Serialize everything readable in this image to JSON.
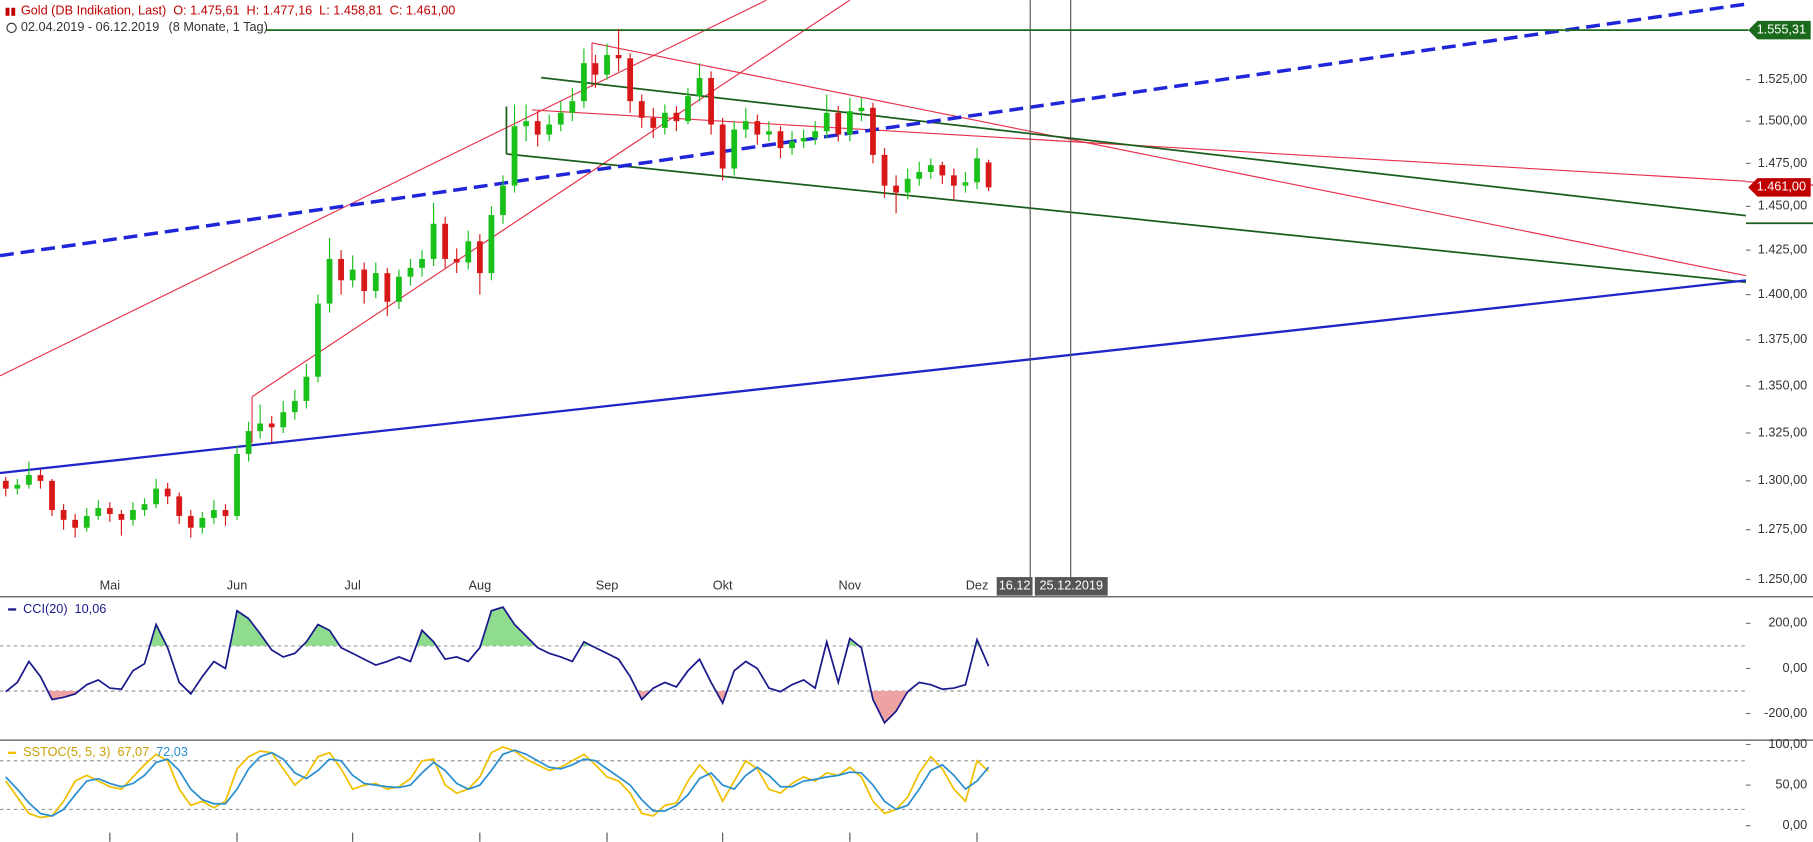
{
  "chart_data": [
    {
      "type": "candlestick",
      "title": "Gold (DB Indikation, Last)",
      "summary": [
        "O: 1.475,61",
        "H: 1.477,16",
        "L: 1.458,81",
        "C: 1.461,00"
      ],
      "subtitle": "02.04.2019 - 06.12.2019",
      "period": "(8 Monate, 1 Tag)",
      "log_scale": true,
      "ylim": [
        1242,
        1574
      ],
      "yticks": [
        {
          "value": 1250,
          "label": "1.250,00"
        },
        {
          "value": 1275,
          "label": "1.275,00"
        },
        {
          "value": 1300,
          "label": "1.300,00"
        },
        {
          "value": 1325,
          "label": "1.325,00"
        },
        {
          "value": 1350,
          "label": "1.350,00"
        },
        {
          "value": 1375,
          "label": "1.375,00"
        },
        {
          "value": 1400,
          "label": "1.400,00"
        },
        {
          "value": 1425,
          "label": "1.425,00"
        },
        {
          "value": 1450,
          "label": "1.450,00"
        },
        {
          "value": 1475,
          "label": "1.475,00"
        },
        {
          "value": 1500,
          "label": "1.500,00"
        },
        {
          "value": 1525,
          "label": "1.525,00"
        }
      ],
      "up_color": "#19c019",
      "down_color": "#d81818",
      "categories": [
        null,
        null,
        null,
        null,
        null,
        null,
        null,
        null,
        null,
        "Mai",
        null,
        null,
        null,
        null,
        null,
        null,
        null,
        null,
        null,
        null,
        "Jun",
        null,
        null,
        null,
        null,
        null,
        null,
        null,
        null,
        null,
        "Jul",
        null,
        null,
        null,
        null,
        null,
        null,
        null,
        null,
        null,
        null,
        "Aug",
        null,
        null,
        null,
        null,
        null,
        null,
        null,
        null,
        null,
        null,
        "Sep",
        null,
        null,
        null,
        null,
        null,
        null,
        null,
        null,
        null,
        "Okt",
        null,
        null,
        null,
        null,
        null,
        null,
        null,
        null,
        null,
        null,
        "Nov",
        null,
        null,
        null,
        null,
        null,
        null,
        null,
        null,
        null,
        null,
        "Dez",
        null
      ],
      "open": [
        1300,
        1296,
        1298,
        1303,
        1300,
        1285,
        1280,
        1276,
        1282,
        1286,
        1283,
        1280,
        1285,
        1288,
        1296,
        1292,
        1282,
        1276,
        1281,
        1285,
        1282,
        1314,
        1326,
        1330,
        1328,
        1336,
        1342,
        1355,
        1395,
        1420,
        1408,
        1414,
        1402,
        1412,
        1396,
        1410,
        1415,
        1420,
        1440,
        1420,
        1418,
        1430,
        1412,
        1445,
        1462,
        1497,
        1500,
        1492,
        1498,
        1505,
        1512,
        1535,
        1528,
        1540,
        1538,
        1512,
        1502,
        1496,
        1505,
        1500,
        1515,
        1526,
        1498,
        1472,
        1495,
        1500,
        1492,
        1494,
        1484,
        1488,
        1490,
        1494,
        1505,
        1492,
        1506,
        1508,
        1480,
        1462,
        1458,
        1466,
        1470,
        1474,
        1468,
        1462,
        1464,
        1475.61
      ],
      "high": [
        1302,
        1301,
        1310,
        1306,
        1301,
        1288,
        1283,
        1286,
        1290,
        1289,
        1285,
        1289,
        1291,
        1301,
        1299,
        1294,
        1285,
        1284,
        1290,
        1288,
        1318,
        1331,
        1340,
        1334,
        1342,
        1348,
        1362,
        1400,
        1432,
        1425,
        1422,
        1418,
        1418,
        1415,
        1414,
        1420,
        1425,
        1452,
        1444,
        1426,
        1436,
        1434,
        1450,
        1468,
        1510,
        1510,
        1506,
        1504,
        1512,
        1520,
        1544,
        1540,
        1547,
        1556,
        1541,
        1516,
        1508,
        1510,
        1509,
        1520,
        1535,
        1530,
        1502,
        1500,
        1508,
        1504,
        1500,
        1497,
        1494,
        1495,
        1500,
        1516,
        1509,
        1514,
        1514,
        1511,
        1484,
        1468,
        1472,
        1476,
        1478,
        1476,
        1472,
        1470,
        1484,
        1477.16
      ],
      "low": [
        1292,
        1293,
        1296,
        1296,
        1282,
        1275,
        1271,
        1274,
        1280,
        1279,
        1272,
        1277,
        1282,
        1286,
        1288,
        1278,
        1271,
        1273,
        1278,
        1277,
        1280,
        1310,
        1322,
        1320,
        1325,
        1332,
        1338,
        1352,
        1390,
        1400,
        1404,
        1395,
        1398,
        1388,
        1392,
        1405,
        1410,
        1416,
        1415,
        1412,
        1414,
        1400,
        1408,
        1440,
        1458,
        1488,
        1485,
        1488,
        1494,
        1500,
        1508,
        1520,
        1525,
        1530,
        1505,
        1496,
        1490,
        1492,
        1494,
        1498,
        1512,
        1492,
        1465,
        1468,
        1490,
        1486,
        1488,
        1478,
        1480,
        1484,
        1486,
        1490,
        1488,
        1488,
        1500,
        1475,
        1455,
        1446,
        1454,
        1462,
        1466,
        1463,
        1454,
        1458,
        1460,
        1458.81
      ],
      "close": [
        1296,
        1298,
        1303,
        1300,
        1285,
        1280,
        1276,
        1282,
        1286,
        1283,
        1280,
        1285,
        1288,
        1296,
        1292,
        1282,
        1276,
        1281,
        1285,
        1282,
        1314,
        1326,
        1330,
        1328,
        1336,
        1342,
        1355,
        1395,
        1420,
        1408,
        1414,
        1402,
        1412,
        1396,
        1410,
        1415,
        1420,
        1440,
        1420,
        1418,
        1430,
        1412,
        1445,
        1462,
        1497,
        1500,
        1492,
        1498,
        1505,
        1512,
        1535,
        1528,
        1540,
        1538,
        1512,
        1502,
        1496,
        1505,
        1500,
        1515,
        1526,
        1498,
        1472,
        1495,
        1500,
        1492,
        1494,
        1484,
        1488,
        1490,
        1494,
        1505,
        1492,
        1506,
        1508,
        1480,
        1462,
        1458,
        1466,
        1470,
        1474,
        1468,
        1462,
        1464,
        1478,
        1461
      ],
      "annotations": [
        {
          "value": 1555.31,
          "label": "1.555,31",
          "color": "#1b6a1b",
          "line": true
        },
        {
          "value": 1461,
          "label": "1.461,00",
          "color": "#c00000"
        }
      ],
      "markers": [
        "16.12",
        "25.12.2019"
      ]
    },
    {
      "type": "line",
      "ylim": [
        -318,
        313
      ],
      "yticks": [
        {
          "value": 200,
          "label": "200,00"
        },
        {
          "value": 0,
          "label": "0,00"
        },
        {
          "value": -200,
          "label": "-200,00"
        }
      ],
      "levels": [
        100,
        -100
      ],
      "fill_above": "#8fdc8f",
      "fill_below": "#eea2a2",
      "series": [
        {
          "name": "CCI(20)",
          "color": "#1a1a8c",
          "value_label": "10,06",
          "values": [
            -103,
            -62,
            31,
            -36,
            -138,
            -128,
            -113,
            -72,
            -51,
            -87,
            -92,
            -10,
            21,
            195,
            92,
            -62,
            -113,
            -36,
            31,
            0,
            256,
            221,
            154,
            82,
            51,
            67,
            118,
            195,
            169,
            92,
            67,
            41,
            15,
            31,
            51,
            31,
            169,
            118,
            41,
            51,
            31,
            92,
            256,
            272,
            195,
            144,
            92,
            67,
            51,
            31,
            118,
            92,
            67,
            41,
            -36,
            -138,
            -87,
            -62,
            -82,
            -10,
            41,
            -62,
            -154,
            -10,
            31,
            0,
            -87,
            -103,
            -72,
            -51,
            -87,
            118,
            -62,
            133,
            92,
            -138,
            -241,
            -190,
            -103,
            -62,
            -72,
            -92,
            -87,
            -72,
            128,
            10.06
          ]
        }
      ]
    },
    {
      "type": "line",
      "ylim": [
        -20,
        104
      ],
      "yticks": [
        {
          "value": 100,
          "label": "100,00"
        },
        {
          "value": 50,
          "label": "50,00"
        },
        {
          "value": 0,
          "label": "0,00"
        }
      ],
      "levels": [
        80,
        20
      ],
      "series": [
        {
          "name": "SSTOC(5, 5, 3)",
          "color": "#f0c000",
          "value_label": "67,07",
          "values": [
            55,
            35,
            15,
            10,
            12,
            30,
            55,
            62,
            55,
            48,
            45,
            60,
            75,
            88,
            80,
            45,
            25,
            30,
            22,
            30,
            70,
            85,
            92,
            90,
            70,
            50,
            62,
            85,
            90,
            70,
            45,
            50,
            52,
            45,
            48,
            58,
            80,
            82,
            50,
            40,
            45,
            60,
            90,
            97,
            92,
            82,
            75,
            68,
            72,
            80,
            88,
            75,
            60,
            55,
            40,
            15,
            12,
            25,
            28,
            55,
            75,
            60,
            30,
            55,
            80,
            70,
            45,
            40,
            52,
            60,
            55,
            65,
            62,
            72,
            60,
            30,
            15,
            20,
            35,
            65,
            85,
            70,
            45,
            30,
            80,
            67.07
          ]
        },
        {
          "color": "#2a8fd0",
          "value_label": "72,03",
          "values": [
            60,
            45,
            28,
            15,
            12,
            20,
            38,
            55,
            58,
            52,
            48,
            52,
            62,
            78,
            82,
            68,
            45,
            32,
            27,
            27,
            45,
            70,
            85,
            90,
            82,
            65,
            58,
            68,
            82,
            80,
            62,
            52,
            50,
            48,
            47,
            50,
            65,
            78,
            68,
            52,
            45,
            50,
            68,
            88,
            93,
            88,
            80,
            72,
            70,
            75,
            82,
            80,
            70,
            60,
            50,
            32,
            18,
            18,
            25,
            38,
            58,
            65,
            50,
            45,
            62,
            72,
            62,
            48,
            48,
            55,
            57,
            60,
            62,
            66,
            65,
            50,
            30,
            20,
            25,
            45,
            68,
            75,
            62,
            45,
            55,
            72.03
          ]
        }
      ]
    }
  ]
}
